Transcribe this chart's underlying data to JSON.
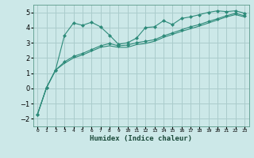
{
  "xlabel": "Humidex (Indice chaleur)",
  "x_values": [
    0,
    1,
    2,
    3,
    4,
    5,
    6,
    7,
    8,
    9,
    10,
    11,
    12,
    13,
    14,
    15,
    16,
    17,
    18,
    19,
    20,
    21,
    22,
    23
  ],
  "line1": [
    -1.7,
    0.05,
    1.2,
    3.5,
    4.3,
    4.15,
    4.35,
    4.05,
    3.5,
    2.9,
    3.0,
    3.3,
    4.0,
    4.05,
    4.45,
    4.2,
    4.6,
    4.7,
    4.85,
    5.0,
    5.1,
    5.05,
    5.1,
    4.95
  ],
  "line2": [
    -1.7,
    0.05,
    1.2,
    1.75,
    2.1,
    2.3,
    2.55,
    2.8,
    2.95,
    2.8,
    2.85,
    3.0,
    3.1,
    3.2,
    3.45,
    3.65,
    3.85,
    4.05,
    4.2,
    4.4,
    4.58,
    4.78,
    4.93,
    4.78
  ],
  "line3": [
    -1.7,
    0.05,
    1.2,
    1.65,
    2.0,
    2.2,
    2.45,
    2.7,
    2.8,
    2.7,
    2.7,
    2.88,
    2.95,
    3.1,
    3.35,
    3.55,
    3.75,
    3.92,
    4.1,
    4.3,
    4.5,
    4.7,
    4.85,
    4.7
  ],
  "line_color": "#2e8b7a",
  "bg_color": "#cce8e8",
  "grid_color": "#aacccc",
  "ylim": [
    -2.5,
    5.5
  ],
  "yticks": [
    -2,
    -1,
    0,
    1,
    2,
    3,
    4,
    5
  ],
  "marker": "D",
  "marker_size": 2.0,
  "line_width": 0.8
}
